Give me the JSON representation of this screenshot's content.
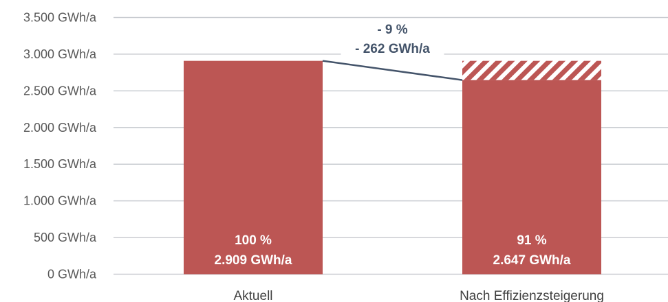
{
  "chart_data": {
    "type": "bar",
    "categories": [
      "Aktuell",
      "Nach Effizienzsteigerung"
    ],
    "values": [
      2909,
      2647
    ],
    "savings_values": [
      0,
      262
    ],
    "bar_labels": [
      {
        "percent": "100 %",
        "value": "2.909 GWh/a"
      },
      {
        "percent": "91 %",
        "value": "2.647 GWh/a"
      }
    ],
    "annotation": {
      "line1": "- 9 %",
      "line2": "- 262 GWh/a"
    },
    "y_ticks": [
      0,
      500,
      1000,
      1500,
      2000,
      2500,
      3000,
      3500
    ],
    "y_tick_labels": [
      "0 GWh/a",
      "500 GWh/a",
      "1.000 GWh/a",
      "1.500 GWh/a",
      "2.000 GWh/a",
      "2.500 GWh/a",
      "3.000 GWh/a",
      "3.500 GWh/a"
    ],
    "ylim": [
      0,
      3500
    ],
    "title": "",
    "xlabel": "",
    "ylabel": "",
    "grid": true,
    "colors": {
      "bar": "#bc5654",
      "grid": "#c9ccd1",
      "connector": "#44546a"
    }
  }
}
